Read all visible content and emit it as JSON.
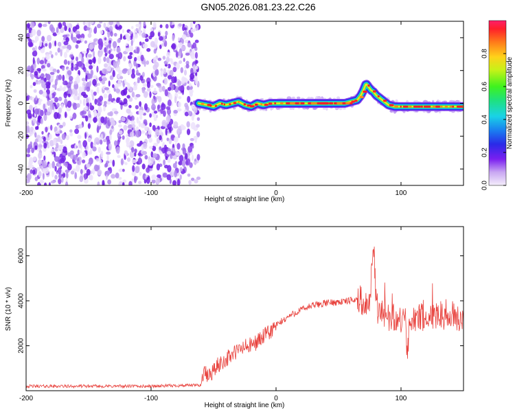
{
  "title": "GN05.2026.081.23.22.C26",
  "chart_data": [
    {
      "type": "heatmap",
      "name": "spectrogram",
      "xlabel": "Height of straight line (km)",
      "ylabel": "Frequency (Hz)",
      "xlim": [
        -200,
        150
      ],
      "ylim": [
        -50,
        50
      ],
      "x_ticks": [
        -200,
        -100,
        0,
        100
      ],
      "y_ticks": [
        -40,
        -20,
        0,
        20,
        40
      ],
      "noise_region_x": [
        -200,
        -62
      ],
      "signal_track": {
        "x": [
          -62,
          -55,
          -50,
          -45,
          -40,
          -35,
          -30,
          -25,
          -20,
          -15,
          -10,
          -5,
          0,
          10,
          20,
          30,
          40,
          50,
          55,
          60,
          65,
          68,
          70,
          72,
          74,
          76,
          78,
          80,
          85,
          90,
          95,
          100,
          110,
          120,
          130,
          140,
          150
        ],
        "y": [
          0,
          -1,
          -2,
          0,
          -1,
          0,
          1,
          -1,
          -2,
          0,
          -1,
          0,
          0,
          0,
          0,
          0,
          0,
          0,
          0,
          1,
          2,
          5,
          8,
          12,
          10,
          8,
          7,
          5,
          2,
          -1,
          -2,
          -2,
          -2,
          -2,
          -2,
          -2,
          -2
        ]
      },
      "colorbar": {
        "label": "Normalized spectral amplitude",
        "ticks": [
          "0.0",
          "0.2",
          "0.4",
          "0.6",
          "0.8"
        ],
        "range": [
          0,
          1
        ]
      }
    },
    {
      "type": "line",
      "name": "snr",
      "xlabel": "Height of straight line (km)",
      "ylabel": "SNR (10 * v/v)",
      "xlim": [
        -200,
        150
      ],
      "ylim": [
        0,
        7300
      ],
      "x_ticks": [
        -200,
        -100,
        0,
        100
      ],
      "y_ticks": [
        2000,
        4000,
        6000
      ],
      "color": "#e8413c",
      "series": [
        {
          "name": "SNR",
          "x": [
            -200,
            -150,
            -100,
            -60,
            -58,
            -55,
            -50,
            -45,
            -40,
            -35,
            -30,
            -25,
            -20,
            -15,
            -10,
            -5,
            0,
            5,
            10,
            20,
            30,
            40,
            50,
            60,
            65,
            70,
            75,
            78,
            80,
            82,
            85,
            90,
            95,
            100,
            103,
            105,
            107,
            110,
            120,
            130,
            140,
            150
          ],
          "y": [
            200,
            200,
            200,
            250,
            900,
            600,
            900,
            1200,
            1400,
            1600,
            1800,
            1950,
            2000,
            2200,
            2400,
            2600,
            2900,
            3100,
            3300,
            3600,
            3800,
            3900,
            3950,
            4000,
            4100,
            4000,
            3900,
            6500,
            4200,
            3300,
            3400,
            3300,
            3300,
            3000,
            3500,
            1500,
            3100,
            3300,
            3200,
            3400,
            3300,
            3200
          ]
        }
      ]
    }
  ]
}
